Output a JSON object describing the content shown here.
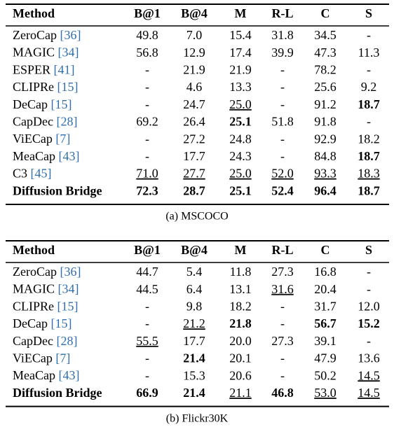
{
  "tables": [
    {
      "header": [
        "Method",
        "B@1",
        "B@4",
        "M",
        "R-L",
        "C",
        "S"
      ],
      "rows": [
        {
          "method": "ZeroCap",
          "ref": "[36]",
          "cells": [
            "49.8",
            "7.0",
            "15.4",
            "31.8",
            "34.5",
            "-"
          ]
        },
        {
          "method": "MAGIC",
          "ref": "[34]",
          "cells": [
            "56.8",
            "12.9",
            "17.4",
            "39.9",
            "47.3",
            "11.3"
          ]
        },
        {
          "method": "ESPER",
          "ref": "[41]",
          "cells": [
            "-",
            "21.9",
            "21.9",
            "-",
            "78.2",
            "-"
          ]
        },
        {
          "method": "CLIPRe",
          "ref": "[15]",
          "cells": [
            "-",
            "4.6",
            "13.3",
            "-",
            "25.6",
            "9.2"
          ]
        },
        {
          "method": "DeCap",
          "ref": "[15]",
          "cells": [
            "-",
            "24.7",
            "25.0",
            "-",
            "91.2",
            "18.7"
          ]
        },
        {
          "method": "CapDec",
          "ref": "[28]",
          "cells": [
            "69.2",
            "26.4",
            "25.1",
            "51.8",
            "91.8",
            "-"
          ]
        },
        {
          "method": "ViECap",
          "ref": "[7]",
          "cells": [
            "-",
            "27.2",
            "24.8",
            "-",
            "92.9",
            "18.2"
          ]
        },
        {
          "method": "MeaCap",
          "ref": "[43]",
          "cells": [
            "-",
            "17.7",
            "24.3",
            "-",
            "84.8",
            "18.7"
          ]
        },
        {
          "method": "C3",
          "ref": "[45]",
          "cells": [
            "71.0",
            "27.7",
            "25.0",
            "52.0",
            "93.3",
            "18.3"
          ]
        },
        {
          "method": "Diffusion Bridge",
          "cells": [
            "72.3",
            "28.7",
            "25.1",
            "52.4",
            "96.4",
            "18.7"
          ]
        }
      ],
      "caption": "(a) MSCOCO"
    },
    {
      "header": [
        "Method",
        "B@1",
        "B@4",
        "M",
        "R-L",
        "C",
        "S"
      ],
      "rows": [
        {
          "method": "ZeroCap",
          "ref": "[36]",
          "cells": [
            "44.7",
            "5.4",
            "11.8",
            "27.3",
            "16.8",
            "-"
          ]
        },
        {
          "method": "MAGIC",
          "ref": "[34]",
          "cells": [
            "44.5",
            "6.4",
            "13.1",
            "31.6",
            "20.4",
            "-"
          ]
        },
        {
          "method": "CLIPRe",
          "ref": "[15]",
          "cells": [
            "-",
            "9.8",
            "18.2",
            "-",
            "31.7",
            "12.0"
          ]
        },
        {
          "method": "DeCap",
          "ref": "[15]",
          "cells": [
            "-",
            "21.2",
            "21.8",
            "-",
            "56.7",
            "15.2"
          ]
        },
        {
          "method": "CapDec",
          "ref": "[28]",
          "cells": [
            "55.5",
            "17.7",
            "20.0",
            "27.3",
            "39.1",
            "-"
          ]
        },
        {
          "method": "ViECap",
          "ref": "[7]",
          "cells": [
            "-",
            "21.4",
            "20.1",
            "-",
            "47.9",
            "13.6"
          ]
        },
        {
          "method": "MeaCap",
          "ref": "[43]",
          "cells": [
            "-",
            "15.3",
            "20.6",
            "-",
            "50.2",
            "14.5"
          ]
        },
        {
          "method": "Diffusion Bridge",
          "cells": [
            "66.9",
            "21.4",
            "21.1",
            "46.8",
            "53.0",
            "14.5"
          ]
        }
      ],
      "caption": "(b) Flickr30K"
    }
  ]
}
